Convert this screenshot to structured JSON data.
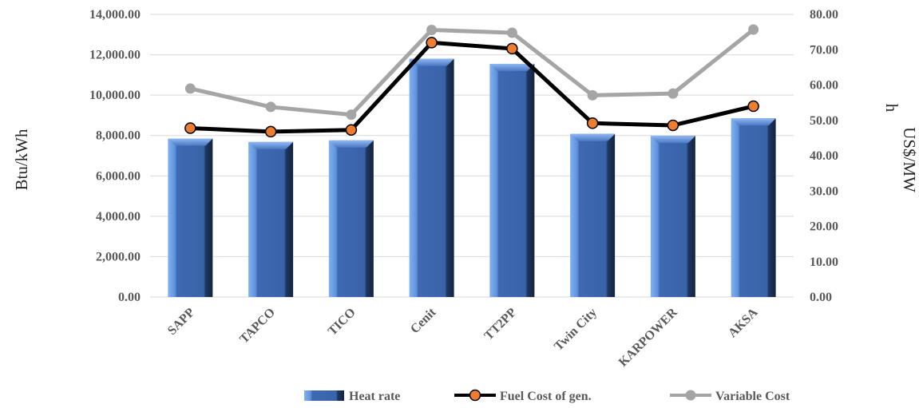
{
  "chart_data": {
    "type": "bar",
    "categories": [
      "SAPP",
      "TAPCO",
      "TICO",
      "Cenit",
      "TT2PP",
      "Twin City",
      "KARPOWER",
      "AKSA"
    ],
    "ylabel": "Btu/kWh",
    "y2label_line1": "US$/MW",
    "y2label_line2": "h",
    "ylim": [
      0,
      14000
    ],
    "y2lim": [
      0,
      80
    ],
    "yticks": [
      "0.00",
      "2,000.00",
      "4,000.00",
      "6,000.00",
      "8,000.00",
      "10,000.00",
      "12,000.00",
      "14,000.00"
    ],
    "y2ticks": [
      "0.00",
      "10.00",
      "20.00",
      "30.00",
      "40.00",
      "50.00",
      "60.00",
      "70.00",
      "80.00"
    ],
    "series": [
      {
        "name": "Heat rate",
        "type": "bar",
        "axis": "left",
        "color": "#3a63a8",
        "values": [
          7850,
          7680,
          7760,
          11800,
          11550,
          8080,
          7980,
          8850
        ]
      },
      {
        "name": "Fuel Cost of gen.",
        "type": "line",
        "axis": "right",
        "color": "#000000",
        "marker_color": "#ed7d31",
        "values": [
          47.8,
          46.8,
          47.3,
          72.0,
          70.3,
          49.2,
          48.6,
          54.0
        ]
      },
      {
        "name": "Variable Cost",
        "type": "line",
        "axis": "right",
        "color": "#a5a5a5",
        "values": [
          59.0,
          53.8,
          51.6,
          75.6,
          74.8,
          57.1,
          57.6,
          75.7
        ]
      }
    ],
    "grid": true,
    "legend": "bottom-right"
  }
}
